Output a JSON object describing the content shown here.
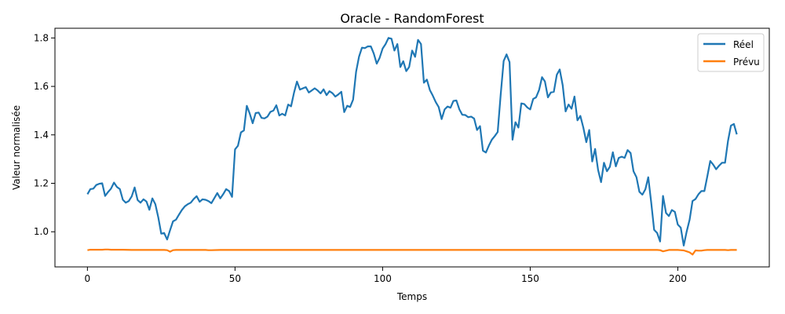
{
  "chart_data": {
    "type": "line",
    "title": "Oracle - RandomForest",
    "xlabel": "Temps",
    "ylabel": "Valeur normalisée",
    "xlim": [
      -11,
      231
    ],
    "ylim": [
      0.855,
      1.84
    ],
    "xticks": [
      0,
      50,
      100,
      150,
      200
    ],
    "yticks": [
      1.0,
      1.2,
      1.4,
      1.6,
      1.8
    ],
    "ytick_labels": [
      "1.0",
      "1.2",
      "1.4",
      "1.6",
      "1.8"
    ],
    "grid": false,
    "legend_position": "top-right",
    "series": [
      {
        "name": "Réel",
        "color": "#1f77b4",
        "points": [
          [
            0,
            1.155
          ],
          [
            1,
            1.176
          ],
          [
            2,
            1.178
          ],
          [
            3,
            1.193
          ],
          [
            4,
            1.198
          ],
          [
            5,
            1.2
          ],
          [
            6,
            1.148
          ],
          [
            7,
            1.164
          ],
          [
            8,
            1.178
          ],
          [
            9,
            1.203
          ],
          [
            10,
            1.185
          ],
          [
            11,
            1.176
          ],
          [
            12,
            1.132
          ],
          [
            13,
            1.12
          ],
          [
            14,
            1.127
          ],
          [
            15,
            1.146
          ],
          [
            16,
            1.183
          ],
          [
            17,
            1.131
          ],
          [
            18,
            1.12
          ],
          [
            19,
            1.134
          ],
          [
            20,
            1.125
          ],
          [
            21,
            1.091
          ],
          [
            22,
            1.138
          ],
          [
            23,
            1.114
          ],
          [
            24,
            1.06
          ],
          [
            25,
            0.992
          ],
          [
            26,
            0.995
          ],
          [
            27,
            0.968
          ],
          [
            28,
            1.007
          ],
          [
            29,
            1.043
          ],
          [
            30,
            1.05
          ],
          [
            31,
            1.07
          ],
          [
            32,
            1.09
          ],
          [
            33,
            1.105
          ],
          [
            34,
            1.114
          ],
          [
            35,
            1.12
          ],
          [
            36,
            1.135
          ],
          [
            37,
            1.147
          ],
          [
            38,
            1.124
          ],
          [
            39,
            1.134
          ],
          [
            40,
            1.132
          ],
          [
            41,
            1.127
          ],
          [
            42,
            1.118
          ],
          [
            43,
            1.139
          ],
          [
            44,
            1.16
          ],
          [
            45,
            1.138
          ],
          [
            46,
            1.155
          ],
          [
            47,
            1.176
          ],
          [
            48,
            1.168
          ],
          [
            49,
            1.144
          ],
          [
            50,
            1.34
          ],
          [
            51,
            1.355
          ],
          [
            52,
            1.41
          ],
          [
            53,
            1.418
          ],
          [
            54,
            1.52
          ],
          [
            55,
            1.487
          ],
          [
            56,
            1.448
          ],
          [
            57,
            1.49
          ],
          [
            58,
            1.492
          ],
          [
            59,
            1.47
          ],
          [
            60,
            1.468
          ],
          [
            61,
            1.475
          ],
          [
            62,
            1.495
          ],
          [
            63,
            1.5
          ],
          [
            64,
            1.522
          ],
          [
            65,
            1.48
          ],
          [
            66,
            1.487
          ],
          [
            67,
            1.48
          ],
          [
            68,
            1.525
          ],
          [
            69,
            1.518
          ],
          [
            70,
            1.575
          ],
          [
            71,
            1.62
          ],
          [
            72,
            1.587
          ],
          [
            73,
            1.592
          ],
          [
            74,
            1.597
          ],
          [
            75,
            1.575
          ],
          [
            76,
            1.583
          ],
          [
            77,
            1.592
          ],
          [
            78,
            1.583
          ],
          [
            79,
            1.571
          ],
          [
            80,
            1.588
          ],
          [
            81,
            1.564
          ],
          [
            82,
            1.58
          ],
          [
            83,
            1.572
          ],
          [
            84,
            1.558
          ],
          [
            85,
            1.567
          ],
          [
            86,
            1.578
          ],
          [
            87,
            1.494
          ],
          [
            88,
            1.52
          ],
          [
            89,
            1.515
          ],
          [
            90,
            1.545
          ],
          [
            91,
            1.66
          ],
          [
            92,
            1.722
          ],
          [
            93,
            1.76
          ],
          [
            94,
            1.758
          ],
          [
            95,
            1.765
          ],
          [
            96,
            1.765
          ],
          [
            97,
            1.736
          ],
          [
            98,
            1.694
          ],
          [
            99,
            1.718
          ],
          [
            100,
            1.756
          ],
          [
            101,
            1.775
          ],
          [
            102,
            1.8
          ],
          [
            103,
            1.797
          ],
          [
            104,
            1.748
          ],
          [
            105,
            1.775
          ],
          [
            106,
            1.68
          ],
          [
            107,
            1.704
          ],
          [
            108,
            1.663
          ],
          [
            109,
            1.68
          ],
          [
            110,
            1.748
          ],
          [
            111,
            1.722
          ],
          [
            112,
            1.792
          ],
          [
            113,
            1.775
          ],
          [
            114,
            1.615
          ],
          [
            115,
            1.628
          ],
          [
            116,
            1.585
          ],
          [
            117,
            1.562
          ],
          [
            118,
            1.535
          ],
          [
            119,
            1.515
          ],
          [
            120,
            1.465
          ],
          [
            121,
            1.505
          ],
          [
            122,
            1.517
          ],
          [
            123,
            1.512
          ],
          [
            124,
            1.54
          ],
          [
            125,
            1.542
          ],
          [
            126,
            1.505
          ],
          [
            127,
            1.483
          ],
          [
            128,
            1.482
          ],
          [
            129,
            1.473
          ],
          [
            130,
            1.475
          ],
          [
            131,
            1.467
          ],
          [
            132,
            1.42
          ],
          [
            133,
            1.436
          ],
          [
            134,
            1.335
          ],
          [
            135,
            1.327
          ],
          [
            136,
            1.356
          ],
          [
            137,
            1.38
          ],
          [
            138,
            1.395
          ],
          [
            139,
            1.412
          ],
          [
            140,
            1.565
          ],
          [
            141,
            1.705
          ],
          [
            142,
            1.732
          ],
          [
            143,
            1.7
          ],
          [
            144,
            1.38
          ],
          [
            145,
            1.452
          ],
          [
            146,
            1.43
          ],
          [
            147,
            1.53
          ],
          [
            148,
            1.527
          ],
          [
            149,
            1.513
          ],
          [
            150,
            1.505
          ],
          [
            151,
            1.548
          ],
          [
            152,
            1.555
          ],
          [
            153,
            1.585
          ],
          [
            154,
            1.638
          ],
          [
            155,
            1.62
          ],
          [
            156,
            1.555
          ],
          [
            157,
            1.575
          ],
          [
            158,
            1.578
          ],
          [
            159,
            1.648
          ],
          [
            160,
            1.67
          ],
          [
            161,
            1.605
          ],
          [
            162,
            1.497
          ],
          [
            163,
            1.525
          ],
          [
            164,
            1.508
          ],
          [
            165,
            1.558
          ],
          [
            166,
            1.46
          ],
          [
            167,
            1.478
          ],
          [
            168,
            1.43
          ],
          [
            169,
            1.37
          ],
          [
            170,
            1.42
          ],
          [
            171,
            1.29
          ],
          [
            172,
            1.342
          ],
          [
            173,
            1.255
          ],
          [
            174,
            1.205
          ],
          [
            175,
            1.285
          ],
          [
            176,
            1.25
          ],
          [
            177,
            1.268
          ],
          [
            178,
            1.328
          ],
          [
            179,
            1.27
          ],
          [
            180,
            1.305
          ],
          [
            181,
            1.31
          ],
          [
            182,
            1.305
          ],
          [
            183,
            1.337
          ],
          [
            184,
            1.325
          ],
          [
            185,
            1.25
          ],
          [
            186,
            1.225
          ],
          [
            187,
            1.165
          ],
          [
            188,
            1.153
          ],
          [
            189,
            1.175
          ],
          [
            190,
            1.225
          ],
          [
            191,
            1.12
          ],
          [
            192,
            1.008
          ],
          [
            193,
            0.995
          ],
          [
            194,
            0.96
          ],
          [
            195,
            1.148
          ],
          [
            196,
            1.078
          ],
          [
            197,
            1.065
          ],
          [
            198,
            1.09
          ],
          [
            199,
            1.082
          ],
          [
            200,
            1.03
          ],
          [
            201,
            1.017
          ],
          [
            202,
            0.943
          ],
          [
            203,
            1.0
          ],
          [
            204,
            1.05
          ],
          [
            205,
            1.127
          ],
          [
            206,
            1.135
          ],
          [
            207,
            1.155
          ],
          [
            208,
            1.168
          ],
          [
            209,
            1.168
          ],
          [
            210,
            1.228
          ],
          [
            211,
            1.292
          ],
          [
            212,
            1.277
          ],
          [
            213,
            1.258
          ],
          [
            214,
            1.273
          ],
          [
            215,
            1.285
          ],
          [
            216,
            1.285
          ],
          [
            217,
            1.375
          ],
          [
            218,
            1.438
          ],
          [
            219,
            1.445
          ],
          [
            220,
            1.402
          ]
        ]
      },
      {
        "name": "Prévu",
        "color": "#ff7f0e",
        "points": [
          [
            0,
            0.924
          ],
          [
            1,
            0.926
          ],
          [
            2,
            0.926
          ],
          [
            3,
            0.926
          ],
          [
            4,
            0.926
          ],
          [
            5,
            0.926
          ],
          [
            6,
            0.927
          ],
          [
            7,
            0.927
          ],
          [
            8,
            0.926
          ],
          [
            9,
            0.926
          ],
          [
            10,
            0.926
          ],
          [
            12,
            0.926
          ],
          [
            15,
            0.925
          ],
          [
            20,
            0.925
          ],
          [
            25,
            0.925
          ],
          [
            26,
            0.925
          ],
          [
            27,
            0.924
          ],
          [
            28,
            0.918
          ],
          [
            29,
            0.924
          ],
          [
            30,
            0.925
          ],
          [
            35,
            0.925
          ],
          [
            40,
            0.925
          ],
          [
            41,
            0.924
          ],
          [
            42,
            0.924
          ],
          [
            45,
            0.925
          ],
          [
            50,
            0.925
          ],
          [
            60,
            0.925
          ],
          [
            70,
            0.925
          ],
          [
            80,
            0.925
          ],
          [
            90,
            0.925
          ],
          [
            100,
            0.925
          ],
          [
            110,
            0.925
          ],
          [
            120,
            0.925
          ],
          [
            130,
            0.925
          ],
          [
            140,
            0.925
          ],
          [
            150,
            0.925
          ],
          [
            160,
            0.925
          ],
          [
            170,
            0.925
          ],
          [
            180,
            0.925
          ],
          [
            190,
            0.925
          ],
          [
            193,
            0.925
          ],
          [
            194,
            0.924
          ],
          [
            195,
            0.919
          ],
          [
            196,
            0.922
          ],
          [
            197,
            0.925
          ],
          [
            200,
            0.925
          ],
          [
            201,
            0.924
          ],
          [
            202,
            0.923
          ],
          [
            203,
            0.919
          ],
          [
            204,
            0.915
          ],
          [
            205,
            0.906
          ],
          [
            206,
            0.923
          ],
          [
            207,
            0.922
          ],
          [
            208,
            0.922
          ],
          [
            209,
            0.924
          ],
          [
            210,
            0.925
          ],
          [
            215,
            0.925
          ],
          [
            216,
            0.925
          ],
          [
            217,
            0.924
          ],
          [
            218,
            0.925
          ],
          [
            219,
            0.925
          ],
          [
            220,
            0.925
          ]
        ]
      }
    ]
  }
}
